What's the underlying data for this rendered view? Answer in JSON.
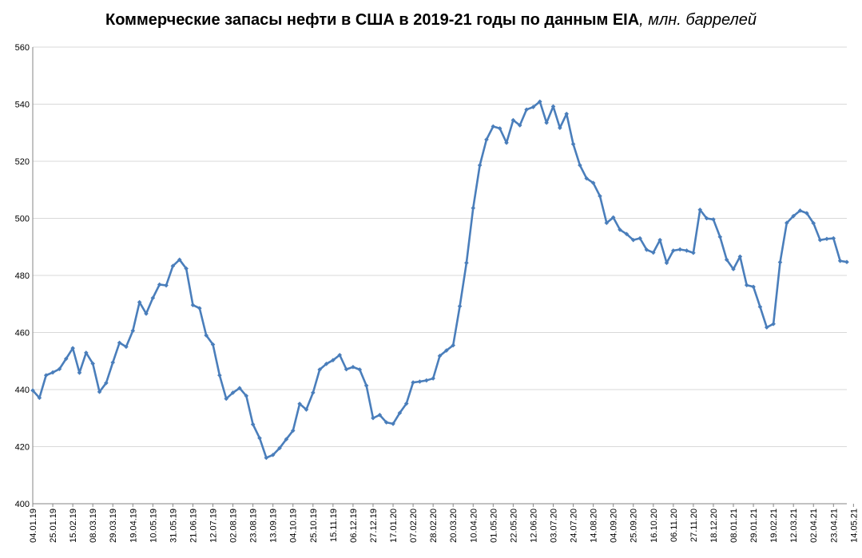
{
  "chart_data": {
    "type": "line",
    "title": "Коммерческие запасы нефти в США в 2019-21 годы по данным EIA",
    "subtitle": ", млн. баррелей",
    "xlabel": "",
    "ylabel": "",
    "ylim": [
      400,
      560
    ],
    "yticks": [
      400,
      420,
      440,
      460,
      480,
      500,
      520,
      540,
      560
    ],
    "grid": true,
    "legend": "none",
    "colors": {
      "line": "#4a7ebb",
      "grid": "#d9d9d9",
      "axis": "#868686"
    },
    "x_tick_labels": [
      "04.01.19",
      "25.01.19",
      "15.02.19",
      "08.03.19",
      "29.03.19",
      "19.04.19",
      "10.05.19",
      "31.05.19",
      "21.06.19",
      "12.07.19",
      "02.08.19",
      "23.08.19",
      "13.09.19",
      "04.10.19",
      "25.10.19",
      "15.11.19",
      "06.12.19",
      "27.12.19",
      "17.01.20",
      "07.02.20",
      "28.02.20",
      "20.03.20",
      "10.04.20",
      "01.05.20",
      "22.05.20",
      "12.06.20",
      "03.07.20",
      "24.07.20",
      "14.08.20",
      "04.09.20",
      "25.09.20",
      "16.10.20",
      "06.11.20",
      "27.11.20",
      "18.12.20",
      "08.01.21",
      "29.01.21",
      "19.02.21",
      "12.03.21",
      "02.04.21",
      "23.04.21",
      "14.05.21"
    ],
    "series": [
      {
        "values": [
          439.7,
          437.1,
          445.0,
          446.0,
          447.2,
          450.8,
          454.5,
          445.9,
          452.9,
          449.1,
          439.2,
          442.3,
          449.5,
          456.4,
          455.0,
          460.6,
          470.6,
          466.6,
          472.1,
          476.8,
          476.5,
          483.3,
          485.5,
          482.4,
          469.6,
          468.5,
          459.0,
          455.8,
          445.0,
          436.8,
          438.9,
          440.5,
          437.8,
          427.8,
          423.0,
          416.1,
          417.1,
          419.5,
          422.6,
          425.6,
          435.0,
          433.0,
          438.9,
          447.0,
          449.0,
          450.3,
          452.1,
          447.1,
          447.9,
          447.0,
          441.4,
          430.0,
          431.1,
          428.5,
          428.0,
          431.8,
          435.1,
          442.5,
          442.8,
          443.2,
          443.9,
          451.8,
          453.7,
          455.5,
          469.2,
          484.4,
          503.6,
          518.6,
          527.6,
          532.2,
          531.5,
          526.5,
          534.4,
          532.6,
          538.1,
          539.0,
          540.9,
          533.5,
          539.2,
          531.7,
          536.6,
          526.0,
          518.6,
          514.0,
          512.4,
          507.8,
          498.4,
          500.3,
          496.0,
          494.5,
          492.4,
          493.0,
          489.0,
          488.0,
          492.4,
          484.4,
          488.7,
          489.1,
          488.7,
          487.9,
          503.0,
          500.0,
          499.6,
          493.5,
          485.5,
          482.2,
          486.6,
          476.6,
          476.0,
          469.0,
          461.8,
          463.0,
          484.6,
          498.4,
          500.8,
          502.7,
          501.8,
          498.3,
          492.4,
          492.8,
          493.0,
          485.1,
          484.7
        ]
      }
    ]
  }
}
